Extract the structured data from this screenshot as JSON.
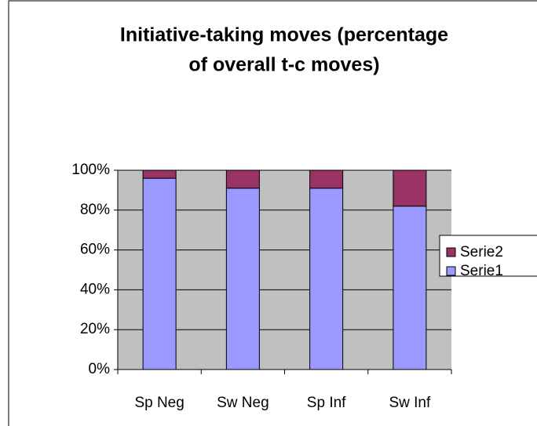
{
  "chart_data": {
    "type": "stacked_bar",
    "title": [
      "Initiative-taking moves (percentage",
      "of overall t-c moves)"
    ],
    "categories": [
      "Sp Neg",
      "Sw Neg",
      "Sp Inf",
      "Sw Inf"
    ],
    "series": [
      {
        "name": "Serie1",
        "color": "#9999ff",
        "values": [
          96,
          91,
          91,
          82
        ]
      },
      {
        "name": "Serie2",
        "color": "#993366",
        "values": [
          4,
          9,
          9,
          18
        ]
      }
    ],
    "ylim": [
      0,
      100
    ],
    "yticks": [
      {
        "value": 0,
        "label": "0%"
      },
      {
        "value": 20,
        "label": "20%"
      },
      {
        "value": 40,
        "label": "40%"
      },
      {
        "value": 60,
        "label": "60%"
      },
      {
        "value": 80,
        "label": "80%"
      },
      {
        "value": 100,
        "label": "100%"
      }
    ],
    "grid": true,
    "legend": "right"
  }
}
